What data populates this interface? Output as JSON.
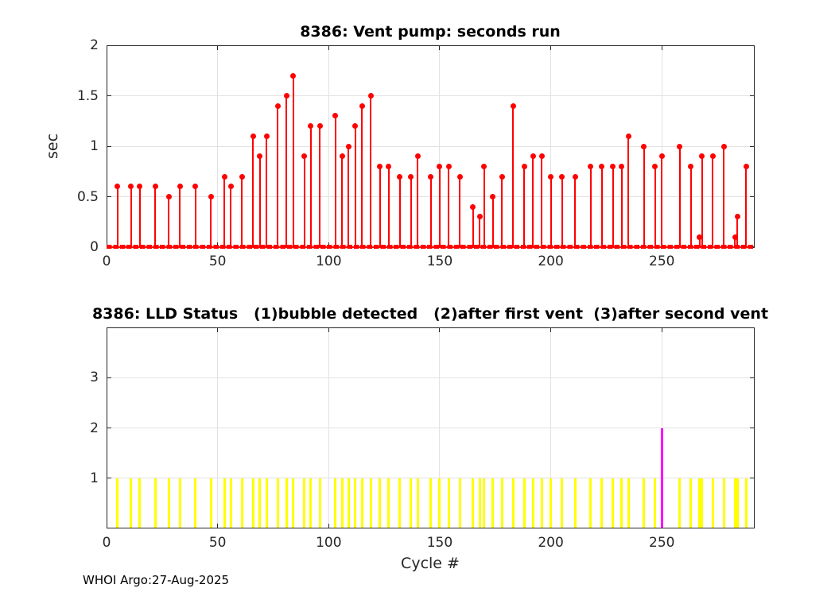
{
  "figure": {
    "footer": "WHOI Argo:27-Aug-2025"
  },
  "colors": {
    "stem": "#ff0000",
    "status1": "#ffff00",
    "status2": "#ff00ff",
    "grid": "#e2e2e2",
    "axis": "#262626",
    "title": "#000000"
  },
  "chart_data": [
    {
      "type": "stem",
      "title": "8386: Vent pump: seconds run",
      "xlabel": "",
      "ylabel": "sec",
      "xlim": [
        0,
        291.8
      ],
      "ylim": [
        0,
        2
      ],
      "xticks": [
        0,
        50,
        100,
        150,
        200,
        250
      ],
      "yticks": [
        0,
        0.5,
        1,
        1.5,
        2
      ],
      "grid": true,
      "series": [
        {
          "name": "vent-pump-seconds-run",
          "color_key": "stem",
          "x": [
            5,
            11,
            15,
            22,
            28,
            33,
            40,
            47,
            53,
            56,
            61,
            66,
            69,
            72,
            77,
            81,
            84,
            89,
            92,
            96,
            103,
            106,
            109,
            112,
            115,
            119,
            123,
            127,
            132,
            137,
            140,
            146,
            150,
            154,
            159,
            165,
            168,
            170,
            174,
            178,
            183,
            188,
            192,
            196,
            200,
            205,
            211,
            218,
            223,
            228,
            232,
            235,
            242,
            247,
            250,
            258,
            263,
            267,
            268,
            273,
            278,
            283,
            284,
            288
          ],
          "y": [
            0.6,
            0.6,
            0.6,
            0.6,
            0.5,
            0.6,
            0.6,
            0.5,
            0.7,
            0.6,
            0.7,
            1.1,
            0.9,
            1.1,
            1.4,
            1.5,
            1.7,
            0.9,
            1.2,
            1.2,
            1.3,
            0.9,
            1.0,
            1.2,
            1.4,
            1.5,
            0.8,
            0.8,
            0.7,
            0.7,
            0.9,
            0.7,
            0.8,
            0.8,
            0.7,
            0.4,
            0.3,
            0.8,
            0.5,
            0.7,
            1.4,
            0.8,
            0.9,
            0.9,
            0.7,
            0.7,
            0.7,
            0.8,
            0.8,
            0.8,
            0.8,
            1.1,
            1.0,
            0.8,
            0.9,
            1.0,
            0.8,
            0.1,
            0.9,
            0.9,
            1.0,
            0.1,
            0.3,
            0.8
          ]
        }
      ],
      "zero_marker_cycle_range": [
        1,
        290
      ]
    },
    {
      "type": "bar",
      "title": "8386: LLD Status   (1)bubble detected   (2)after first vent  (3)after second vent",
      "xlabel": "Cycle #",
      "ylabel": "",
      "xlim": [
        0,
        291.8
      ],
      "ylim": [
        0,
        4
      ],
      "xticks": [
        0,
        50,
        100,
        150,
        200,
        250
      ],
      "yticks": [
        1,
        2,
        3
      ],
      "grid": true,
      "series": [
        {
          "name": "lld-status-1-bubble-detected",
          "color_key": "status1",
          "value": 1,
          "x": [
            5,
            11,
            15,
            22,
            28,
            33,
            40,
            47,
            53,
            56,
            61,
            66,
            69,
            72,
            77,
            81,
            84,
            89,
            92,
            96,
            103,
            106,
            109,
            112,
            115,
            119,
            123,
            127,
            132,
            137,
            140,
            146,
            150,
            154,
            159,
            165,
            168,
            170,
            174,
            178,
            183,
            188,
            192,
            196,
            200,
            205,
            211,
            218,
            223,
            228,
            232,
            235,
            242,
            247,
            258,
            263,
            267,
            268,
            273,
            278,
            283,
            284,
            288
          ]
        },
        {
          "name": "lld-status-2-after-first-vent",
          "color_key": "status2",
          "value": 2,
          "x": [
            250
          ]
        }
      ]
    }
  ]
}
